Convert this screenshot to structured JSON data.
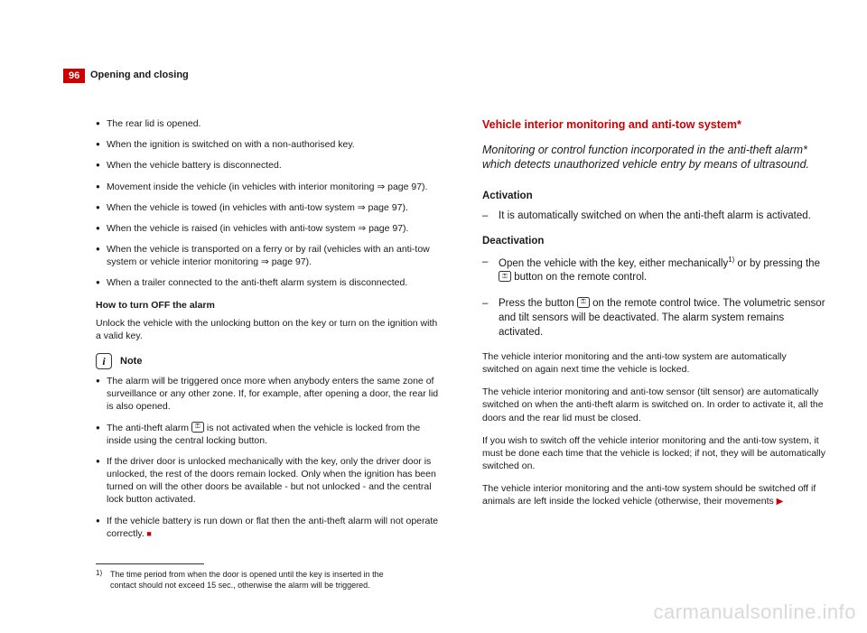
{
  "header": {
    "page_number": "96",
    "running_title": "Opening and closing"
  },
  "left": {
    "bullets": [
      "The rear lid is opened.",
      "When the ignition is switched on with a non-authorised key.",
      "When the vehicle battery is disconnected.",
      "Movement inside the vehicle (in vehicles with interior monitoring ⇒ page 97).",
      "When the vehicle is towed (in vehicles with anti-tow system ⇒ page 97).",
      "When the vehicle is raised (in vehicles with anti-tow system ⇒ page 97).",
      "When the vehicle is transported on a ferry or by rail (vehicles with an anti-tow system or vehicle interior monitoring ⇒ page 97).",
      "When a trailer connected to the anti-theft alarm system is disconnected."
    ],
    "how_off_title": "How to turn OFF the alarm",
    "how_off_body": "Unlock the vehicle with the unlocking button on the key or turn on the ignition with a valid key.",
    "note_label": "Note",
    "notes": {
      "n1": "The alarm will be triggered once more when anybody enters the same zone of surveillance or any other zone. If, for example, after opening a door, the rear lid is also opened.",
      "n2a": "The anti-theft alarm ",
      "n2b": " is not activated when the vehicle is locked from the inside using the central locking button.",
      "n3": "If the driver door is unlocked mechanically with the key, only the driver door is unlocked, the rest of the doors remain locked. Only when the ignition has been turned on will the other doors be available - but not unlocked - and the central lock button activated.",
      "n4a": "If the vehicle battery is run down or flat then the anti-theft alarm will not operate correctly.",
      "n4b": " ■"
    },
    "footnote": {
      "num": "1)",
      "text": "The time period from when the door is opened until the key is inserted in the contact should not exceed 15 sec., otherwise the alarm will be triggered."
    }
  },
  "right": {
    "section_title": "Vehicle interior monitoring and anti-tow system*",
    "intro": "Monitoring or control function incorporated in the anti-theft alarm* which detects unauthorized vehicle entry by means of ultrasound.",
    "activation_label": "Activation",
    "activation_item": "It is automatically switched on when the anti-theft alarm is activated.",
    "deactivation_label": "Deactivation",
    "deact1a": "Open the vehicle with the key, either mechanically",
    "deact1b": " or by pressing the ",
    "deact1c": " button on the remote control.",
    "deact2a": "Press the button ",
    "deact2b": " on the remote control twice. The volumetric sensor and tilt sensors will be deactivated. The alarm system remains activated.",
    "paras": [
      "The vehicle interior monitoring and the anti-tow system are automatically switched on again next time the vehicle is locked.",
      "The vehicle interior monitoring and anti-tow sensor (tilt sensor) are automatically switched on when the anti-theft alarm is switched on. In order to activate it, all the doors and the rear lid must be closed.",
      "If you wish to switch off the vehicle interior monitoring and the anti-tow system, it must be done each time that the vehicle is locked; if not, they will be automatically switched on."
    ],
    "last_a": "The vehicle interior monitoring and the anti-tow system should be switched off if animals are left inside the locked vehicle (otherwise, their movements ",
    "last_b": " ▶"
  },
  "watermark": "carmanualsonline.info",
  "colors": {
    "accent": "#c00",
    "text": "#1a1a1a",
    "watermark": "#d9d9d9",
    "background": "#ffffff"
  }
}
